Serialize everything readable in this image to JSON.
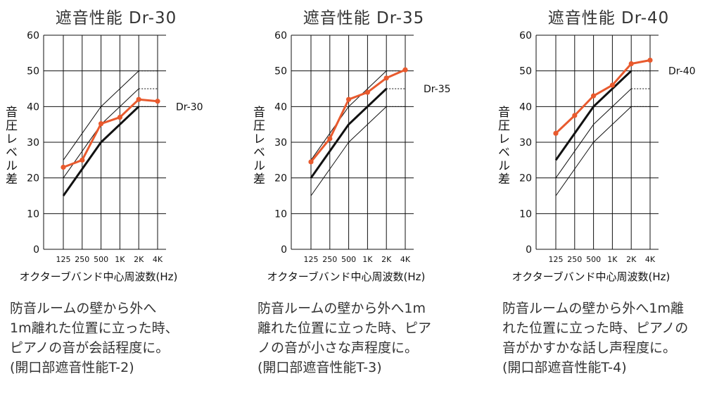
{
  "chart_data": [
    {
      "type": "line",
      "title": "遮音性能 Dr-30",
      "ylabel": "音圧レベル差",
      "xlabel": "オクターブバンド中心周波数(Hz)",
      "categories": [
        "125",
        "250",
        "500",
        "1K",
        "2K",
        "4K"
      ],
      "y_ticks": [
        "0",
        "10",
        "20",
        "30",
        "40",
        "50",
        "60"
      ],
      "ylim": [
        0,
        60
      ],
      "reference_curves": [
        {
          "values": [
            25,
            32.5,
            40,
            45,
            50,
            50
          ]
        },
        {
          "values": [
            20,
            27.5,
            35,
            40,
            45,
            45
          ]
        },
        {
          "values": [
            15,
            22.5,
            30,
            35,
            40,
            40
          ]
        }
      ],
      "highlight_curve_index": 2,
      "curve_label": "Dr-30",
      "curve_label_y": 40,
      "measured": {
        "values": [
          23,
          25,
          35.2,
          37,
          42,
          41.5
        ],
        "color": "#e85a2e"
      },
      "description": [
        "防音ルームの壁から外へ",
        "1m離れた位置に立った時、",
        "ピアノの音が会話程度に。",
        "(開口部遮音性能T-2)"
      ]
    },
    {
      "type": "line",
      "title": "遮音性能 Dr-35",
      "ylabel": "音圧レベル差",
      "xlabel": "オクターブバンド中心周波数(Hz)",
      "categories": [
        "125",
        "250",
        "500",
        "1K",
        "2K",
        "4K"
      ],
      "y_ticks": [
        "0",
        "10",
        "20",
        "30",
        "40",
        "50",
        "60"
      ],
      "ylim": [
        0,
        60
      ],
      "reference_curves": [
        {
          "values": [
            25,
            32.5,
            40,
            45,
            50,
            50
          ]
        },
        {
          "values": [
            20,
            27.5,
            35,
            40,
            45,
            45
          ]
        },
        {
          "values": [
            15,
            22.5,
            30,
            35,
            40,
            40
          ]
        }
      ],
      "highlight_curve_index": 1,
      "curve_label": "Dr-35",
      "curve_label_y": 45,
      "measured": {
        "values": [
          24.5,
          31,
          42,
          44,
          48,
          50.3
        ],
        "color": "#e85a2e"
      },
      "description": [
        "防音ルームの壁から外へ1m",
        "離れた位置に立った時、ピア",
        "ノの音が小さな声程度に。",
        "(開口部遮音性能T-3)"
      ]
    },
    {
      "type": "line",
      "title": "遮音性能 Dr-40",
      "ylabel": "音圧レベル差",
      "xlabel": "オクターブバンド中心周波数(Hz)",
      "categories": [
        "125",
        "250",
        "500",
        "1K",
        "2K",
        "4K"
      ],
      "y_ticks": [
        "0",
        "10",
        "20",
        "30",
        "40",
        "50",
        "60"
      ],
      "ylim": [
        0,
        60
      ],
      "reference_curves": [
        {
          "values": [
            25,
            32.5,
            40,
            45,
            50,
            50
          ]
        },
        {
          "values": [
            20,
            27.5,
            35,
            40,
            45,
            45
          ]
        },
        {
          "values": [
            15,
            22.5,
            30,
            35,
            40,
            40
          ]
        }
      ],
      "highlight_curve_index": 0,
      "curve_label": "Dr-40",
      "curve_label_y": 50,
      "measured": {
        "values": [
          32.5,
          37.5,
          43,
          46,
          52,
          53
        ],
        "color": "#e85a2e"
      },
      "description": [
        "防音ルームの壁から外へ1m離",
        "れた位置に立った時、ピアノの",
        "音がかすかな話し声程度に。",
        "(開口部遮音性能T-4)"
      ]
    }
  ]
}
